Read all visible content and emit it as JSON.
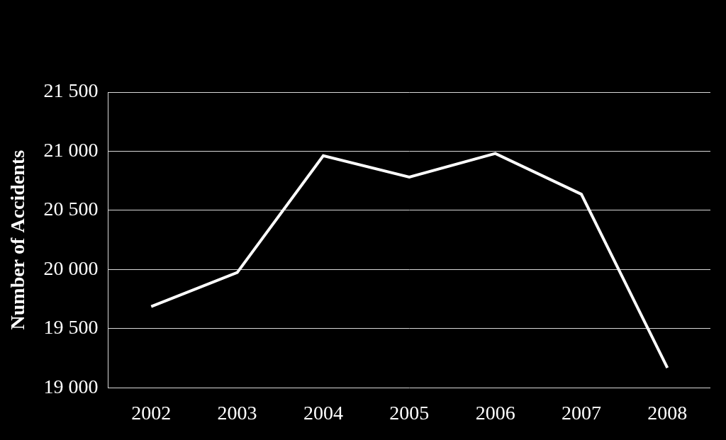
{
  "chart_data": {
    "type": "line",
    "y_label": "Number of Accidents",
    "categories": [
      "2002",
      "2003",
      "2004",
      "2005",
      "2006",
      "2007",
      "2008"
    ],
    "values": [
      19687,
      19975,
      20962,
      20781,
      20981,
      20637,
      19169
    ],
    "color": "#ffffff",
    "line_style": "solid",
    "ylim": [
      19000,
      21500
    ],
    "yticks": [
      {
        "value": 19000,
        "label": "19 000"
      },
      {
        "value": 19500,
        "label": "19 500"
      },
      {
        "value": 20000,
        "label": "20 000"
      },
      {
        "value": 20500,
        "label": "20 500"
      },
      {
        "value": 21000,
        "label": "21 000"
      },
      {
        "value": 21500,
        "label": "21 500"
      }
    ],
    "grid": true
  }
}
